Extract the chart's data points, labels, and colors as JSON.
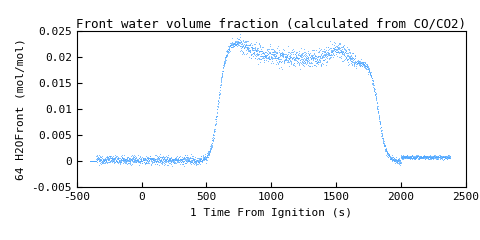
{
  "title": "Front water volume fraction (calculated from CO/CO2)",
  "xlabel": "1 Time From Ignition (s)",
  "ylabel": "64 H2OFront (mol/mol)",
  "xlim": [
    -500,
    2500
  ],
  "ylim": [
    -0.005,
    0.025
  ],
  "xticks": [
    -500,
    0,
    500,
    1000,
    1500,
    2000,
    2500
  ],
  "yticks": [
    -0.005,
    0,
    0.005,
    0.01,
    0.015,
    0.02,
    0.025
  ],
  "line_color": "#4da6ff",
  "bg_color": "#ffffff",
  "title_fontsize": 9,
  "label_fontsize": 8,
  "tick_fontsize": 8
}
